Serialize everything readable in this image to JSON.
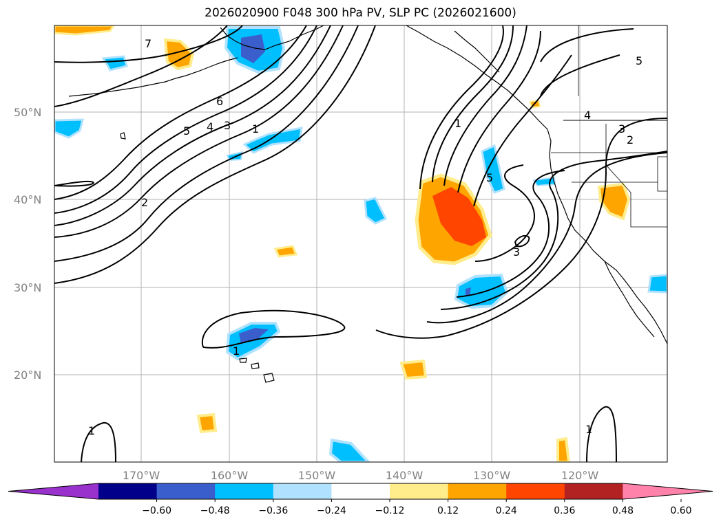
{
  "title": "2026020900 F048 300 hPa PV, SLP PC (2026021600)",
  "lat_ticks": [
    "50°N",
    "40°N",
    "30°N",
    "20°N"
  ],
  "lon_ticks": [
    "170°W",
    "160°W",
    "150°W",
    "140°W",
    "130°W",
    "120°W"
  ],
  "colorbar": {
    "tick_labels": [
      "−0.60",
      "−0.48",
      "−0.36",
      "−0.24",
      "−0.12",
      "0.12",
      "0.24",
      "0.36",
      "0.48",
      "0.60"
    ],
    "colors": [
      "#9932CC",
      "#00008B",
      "#3A5FCD",
      "#00BFFF",
      "#B0E2FF",
      "#FFFFFF",
      "#FFEC8B",
      "#FFA500",
      "#FF4500",
      "#B22222",
      "#FF82AB"
    ]
  },
  "contour_labels": [
    "7",
    "6",
    "5",
    "4",
    "3",
    "1",
    "2",
    "1",
    "5",
    "3",
    "1",
    "1",
    "1",
    "5",
    "4",
    "3",
    "2"
  ]
}
